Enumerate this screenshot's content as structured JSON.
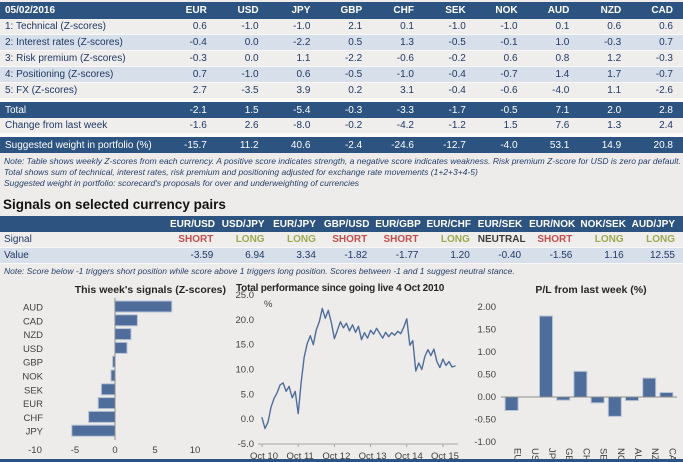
{
  "colors": {
    "navy": "#2D5380",
    "row_light": "#EFEEEC",
    "row_blue": "#D7DFEA",
    "text_navy": "#1F3864",
    "short_red": "#C0504D",
    "long_olive": "#9DA84F",
    "bar_fill": "#4F6D9A",
    "bar_border": "#B7C3D6",
    "line": "#4F6D9A",
    "axis_gray": "#8C8C8C"
  },
  "scorecard": {
    "date": "05/02/2016",
    "currencies": [
      "EUR",
      "USD",
      "JPY",
      "GBP",
      "CHF",
      "SEK",
      "NOK",
      "AUD",
      "NZD",
      "CAD"
    ],
    "rows": [
      {
        "label": "1: Technical (Z-scores)",
        "values": [
          "0.6",
          "-1.0",
          "-1.0",
          "2.1",
          "0.1",
          "-1.0",
          "-1.0",
          "0.1",
          "0.6",
          "0.6"
        ]
      },
      {
        "label": "2: Interest rates (Z-scores)",
        "values": [
          "-0.4",
          "0.0",
          "-2.2",
          "0.5",
          "1.3",
          "-0.5",
          "-0.1",
          "1.0",
          "-0.3",
          "0.7"
        ]
      },
      {
        "label": "3: Risk premium (Z-scores)",
        "values": [
          "-0.3",
          "0.0",
          "1.1",
          "-2.2",
          "-0.6",
          "-0.2",
          "0.6",
          "0.8",
          "1.2",
          "-0.3"
        ]
      },
      {
        "label": "4: Positioning (Z-scores)",
        "values": [
          "0.7",
          "-1.0",
          "0.6",
          "-0.5",
          "-1.0",
          "-0.4",
          "-0.7",
          "1.4",
          "1.7",
          "-0.7"
        ]
      },
      {
        "label": "5: FX (Z-scores)",
        "values": [
          "2.7",
          "-3.5",
          "3.9",
          "0.2",
          "3.1",
          "-0.4",
          "-0.6",
          "-4.0",
          "1.1",
          "-2.6"
        ]
      }
    ],
    "total": {
      "label": "Total",
      "values": [
        "-2.1",
        "1.5",
        "-5.4",
        "-0.3",
        "-3.3",
        "-1.7",
        "-0.5",
        "7.1",
        "2.0",
        "2.8"
      ]
    },
    "change": {
      "label": "Change from last week",
      "values": [
        "-1.6",
        "2.6",
        "-8.0",
        "-0.2",
        "-4.2",
        "-1.2",
        "1.5",
        "7.6",
        "1.3",
        "2.4"
      ]
    },
    "weight": {
      "label": "Suggested weight in portfolio (%)",
      "values": [
        "-15.7",
        "11.2",
        "40.6",
        "-2.4",
        "-24.6",
        "-12.7",
        "-4.0",
        "53.1",
        "14.9",
        "20.8"
      ]
    },
    "notes": [
      "Note: Table shows weekly Z-scores from each currency. A positive score indicates strength, a negative score indicates weakness. Risk premium Z-score for USD is zero par default.",
      "Total shows sum of technical, interest rates, risk premium and positioning adjusted for exchange rate movements (1+2+3+4-5)",
      "Suggested weight in portfolio: scorecard's proposals for over and underweighting of currencies"
    ]
  },
  "signals": {
    "heading": "Signals on selected currency pairs",
    "pairs": [
      "EUR/USD",
      "USD/JPY",
      "EUR/JPY",
      "GBP/USD",
      "EUR/GBP",
      "EUR/CHF",
      "EUR/SEK",
      "EUR/NOK",
      "NOK/SEK",
      "AUD/JPY"
    ],
    "signal_label": "Signal",
    "value_label": "Value",
    "signal_values": [
      "SHORT",
      "LONG",
      "LONG",
      "SHORT",
      "SHORT",
      "LONG",
      "NEUTRAL",
      "SHORT",
      "LONG",
      "LONG"
    ],
    "values": [
      "-3.59",
      "6.94",
      "3.34",
      "-1.82",
      "-1.77",
      "1.20",
      "-0.40",
      "-1.56",
      "1.16",
      "12.55"
    ],
    "note": "Note: Score below -1 triggers short position while score above 1 triggers long position. Scores between -1 and 1 suggest neutral stance."
  },
  "chart_data": [
    {
      "type": "bar",
      "orientation": "horizontal",
      "title": "This week's signals (Z-scores)",
      "categories": [
        "AUD",
        "CAD",
        "NZD",
        "USD",
        "GBP",
        "NOK",
        "SEK",
        "EUR",
        "CHF",
        "JPY"
      ],
      "values": [
        7.1,
        2.8,
        2.0,
        1.5,
        -0.3,
        -0.5,
        -1.7,
        -2.1,
        -3.3,
        -5.4
      ],
      "xlim": [
        -10,
        10
      ],
      "xticks": [
        -10,
        -5,
        0,
        5,
        10
      ],
      "grid": false,
      "legend": "none"
    },
    {
      "type": "line",
      "title": "Total performance since going live 4 Oct 2010",
      "ylabel": "%",
      "ylim": [
        -5,
        25
      ],
      "yticks": [
        25.0,
        20.0,
        15.0,
        10.0,
        5.0,
        0.0,
        -5.0
      ],
      "x_unit": "month",
      "x_start": "Oct 2010",
      "x_end": "Feb 2016",
      "xtick_labels": [
        "Oct 10",
        "Oct 11",
        "Oct 12",
        "Oct 13",
        "Oct 14",
        "Oct 15"
      ],
      "xtick_positions": [
        0,
        12,
        24,
        36,
        48,
        60
      ],
      "values": [
        0.3,
        -1.9,
        -0.6,
        2.4,
        4.2,
        5.3,
        6.9,
        7.3,
        5.6,
        6.6,
        4.3,
        5.6,
        1.1,
        7.5,
        12.5,
        15.2,
        16.8,
        15.0,
        18.0,
        19.6,
        22.3,
        20.3,
        21.9,
        19.4,
        16.2,
        17.9,
        19.6,
        18.4,
        19.3,
        17.8,
        19.0,
        17.5,
        18.7,
        16.0,
        17.4,
        16.3,
        17.9,
        17.1,
        18.3,
        17.3,
        16.3,
        17.5,
        16.6,
        17.4,
        16.9,
        17.7,
        17.2,
        18.5,
        20.2,
        14.9,
        15.8,
        9.7,
        11.3,
        10.0,
        12.6,
        14.0,
        12.8,
        14.1,
        11.6,
        10.4,
        12.1,
        10.8,
        11.6,
        10.5,
        10.7
      ],
      "grid": false,
      "legend": "none"
    },
    {
      "type": "bar",
      "orientation": "vertical",
      "title": "P/L from last week (%)",
      "categories": [
        "EUR",
        "USD",
        "JPY",
        "GBP",
        "CHF",
        "SEK",
        "NOK",
        "AUD",
        "NZD",
        "CAD"
      ],
      "values": [
        -0.3,
        0.0,
        1.8,
        -0.07,
        0.57,
        -0.13,
        -0.43,
        -0.08,
        0.42,
        0.1
      ],
      "ylim": [
        -1,
        2
      ],
      "yticks": [
        2.0,
        1.5,
        1.0,
        0.5,
        0.0,
        -0.5,
        -1.0
      ],
      "grid": false,
      "legend": "none"
    }
  ]
}
